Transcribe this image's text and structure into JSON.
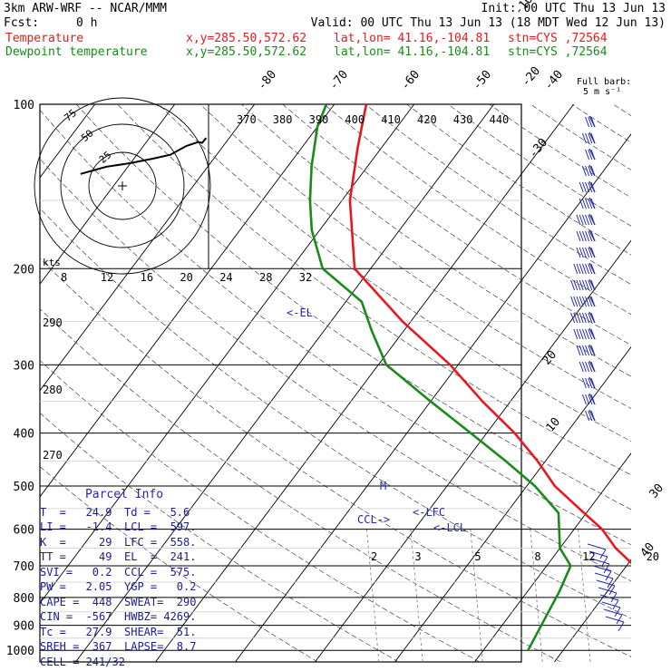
{
  "header": {
    "model": "3km ARW-WRF -- NCAR/MMM",
    "init": "Init: 00 UTC Thu 13 Jun 13",
    "fcst_label": "Fcst:",
    "fcst_value": "0 h",
    "valid": "Valid: 00 UTC Thu 13 Jun 13 (18 MDT Wed 12 Jun 13)",
    "temp_label": "Temperature",
    "dew_label": "Dewpoint temperature",
    "xy": "x,y=285.50,572.62",
    "latlon": "lat,lon= 41.16,-104.81",
    "stn": "stn=CYS ,72564"
  },
  "barb_legend": {
    "line1": "Full barb:",
    "line2": "5 m s⁻¹"
  },
  "parcel_info": {
    "title": "Parcel Info",
    "rows": [
      [
        "T  =   24.9",
        "Td =   5.6"
      ],
      [
        "LI =   -1.4",
        "LCL =  597."
      ],
      [
        "K  =     29",
        "LFC =  558."
      ],
      [
        "TT =     49",
        "EL  =  241."
      ],
      [
        "SVI =   0.2",
        "CCL =  575."
      ],
      [
        "PW =   2.05",
        "YGP =   0.2"
      ],
      [
        "CAPE =  448",
        "SWEAT=  290"
      ],
      [
        "CIN =  -567",
        "HWBZ= 4269."
      ],
      [
        "Tc =   27.9",
        "SHEAR=  51."
      ],
      [
        "SREH =  367",
        "LAPSE=  8.7"
      ],
      [
        "CELL = 241/32",
        ""
      ]
    ]
  },
  "chart_data": {
    "type": "line",
    "subtype": "skew-T log-p sounding",
    "pressure_ticks": [
      100,
      200,
      300,
      400,
      500,
      600,
      700,
      800,
      900,
      1000
    ],
    "temperature_ticks": [
      -80,
      -70,
      -60,
      -50,
      -40,
      -30,
      -20,
      -10,
      0,
      10,
      20,
      30,
      40
    ],
    "theta_labels": [
      370,
      380,
      390,
      400,
      410,
      420,
      430,
      440
    ],
    "hodograph_speed_labels": [
      8,
      12,
      16,
      20,
      24,
      28,
      32
    ],
    "hodograph_ring_labels": [
      75,
      50,
      25
    ],
    "hodograph_units": "kts",
    "dry_adiabat_labels": [
      290,
      280,
      270
    ],
    "mixing_ratio_labels": [
      2,
      3,
      5,
      8,
      12,
      20
    ],
    "level_markers": {
      "el": "<-EL",
      "lfc": "<-LFC",
      "lcl": "<-LCL",
      "ccl": "CCL->",
      "melting": "M"
    },
    "series": [
      {
        "name": "Temperature",
        "color": "#e8191c",
        "points": [
          [
            1000,
            24.9
          ],
          [
            780,
            19
          ],
          [
            720,
            12.5
          ],
          [
            650,
            7
          ],
          [
            600,
            3.5
          ],
          [
            558,
            -0.5
          ],
          [
            500,
            -6.5
          ],
          [
            450,
            -11
          ],
          [
            400,
            -16.5
          ],
          [
            350,
            -23.5
          ],
          [
            300,
            -31
          ],
          [
            250,
            -41
          ],
          [
            200,
            -52
          ],
          [
            150,
            -59
          ],
          [
            120,
            -63
          ],
          [
            100,
            -66
          ]
        ]
      },
      {
        "name": "Dewpoint temperature",
        "color": "#1a8a1a",
        "points": [
          [
            1000,
            5.6
          ],
          [
            780,
            4
          ],
          [
            700,
            3
          ],
          [
            650,
            0
          ],
          [
            597,
            -2
          ],
          [
            560,
            -3.5
          ],
          [
            500,
            -9
          ],
          [
            450,
            -15
          ],
          [
            400,
            -22
          ],
          [
            350,
            -30
          ],
          [
            300,
            -39
          ],
          [
            260,
            -44
          ],
          [
            230,
            -48
          ],
          [
            200,
            -56
          ],
          [
            170,
            -61
          ],
          [
            150,
            -64
          ],
          [
            130,
            -67
          ],
          [
            110,
            -70
          ],
          [
            100,
            -71
          ]
        ]
      }
    ],
    "hodograph": [
      [
        -10.5,
        -3
      ],
      [
        -4,
        -4.8
      ],
      [
        2,
        -5.7
      ],
      [
        8,
        -6.9
      ],
      [
        12,
        -7.8
      ],
      [
        16,
        -10
      ],
      [
        19,
        -11
      ],
      [
        20,
        -10.8
      ],
      [
        21,
        -12
      ]
    ],
    "wind_barbs_high": [
      3,
      4,
      3,
      4,
      5,
      5,
      6,
      6,
      6,
      7,
      8,
      8,
      8,
      7,
      6,
      5,
      4,
      4,
      3
    ],
    "grid": true
  }
}
